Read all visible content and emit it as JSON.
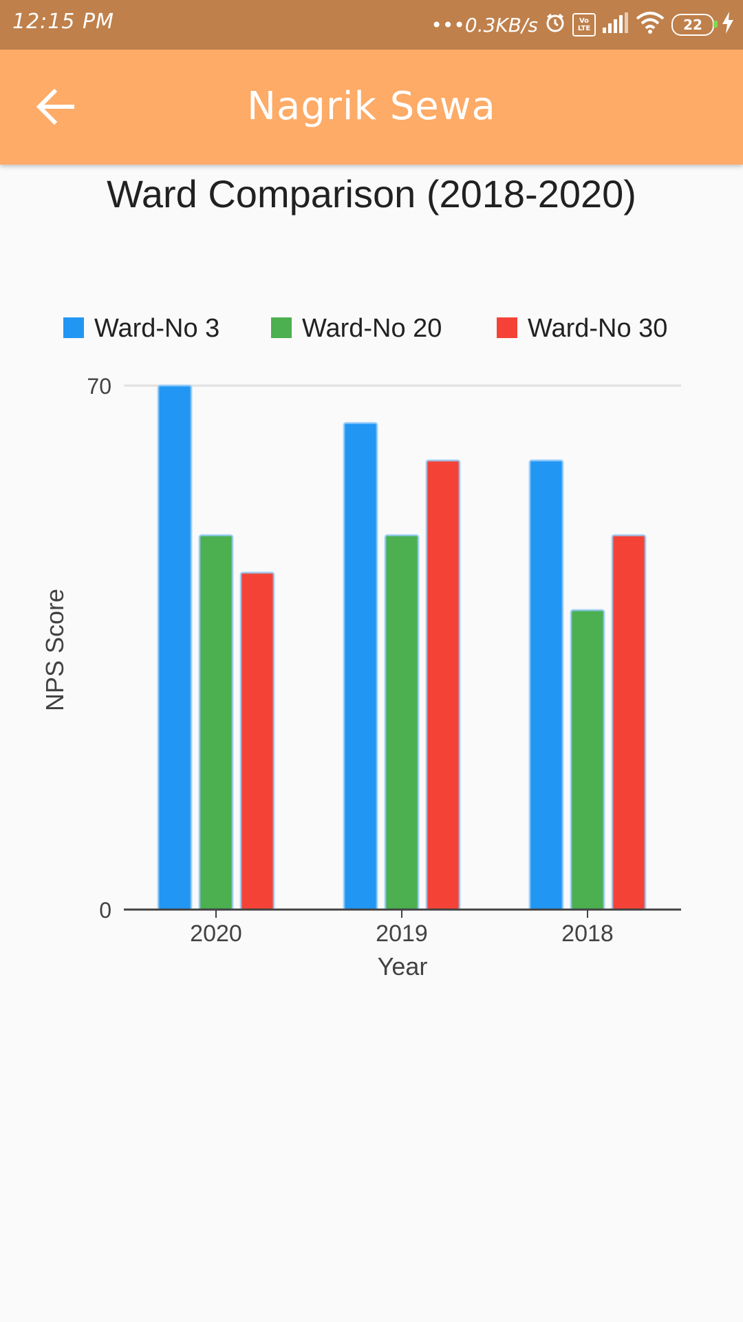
{
  "status_bar": {
    "time": "12:15 PM",
    "network_speed": "0.3KB/s",
    "volte_top": "Vo",
    "volte_bottom": "LTE",
    "battery": "22",
    "colors": {
      "background": "#bf804b"
    }
  },
  "app_bar": {
    "title": "Nagrik Sewa",
    "back_icon": "arrow-left-icon",
    "colors": {
      "background": "#fdab67"
    }
  },
  "chart_data": {
    "type": "bar",
    "title": "Ward Comparison (2018-2020)",
    "xlabel": "Year",
    "ylabel": "NPS Score",
    "categories": [
      "2020",
      "2019",
      "2018"
    ],
    "ylim": [
      0,
      70
    ],
    "y_ticks": [
      "0",
      "70"
    ],
    "legend_position": "top",
    "grid": true,
    "series": [
      {
        "name": "Ward-No 3",
        "color": "#2196f3",
        "values": [
          70,
          65,
          60
        ]
      },
      {
        "name": "Ward-No 20",
        "color": "#4caf50",
        "values": [
          50,
          50,
          40
        ]
      },
      {
        "name": "Ward-No 30",
        "color": "#f44336",
        "values": [
          45,
          60,
          50
        ]
      }
    ]
  }
}
